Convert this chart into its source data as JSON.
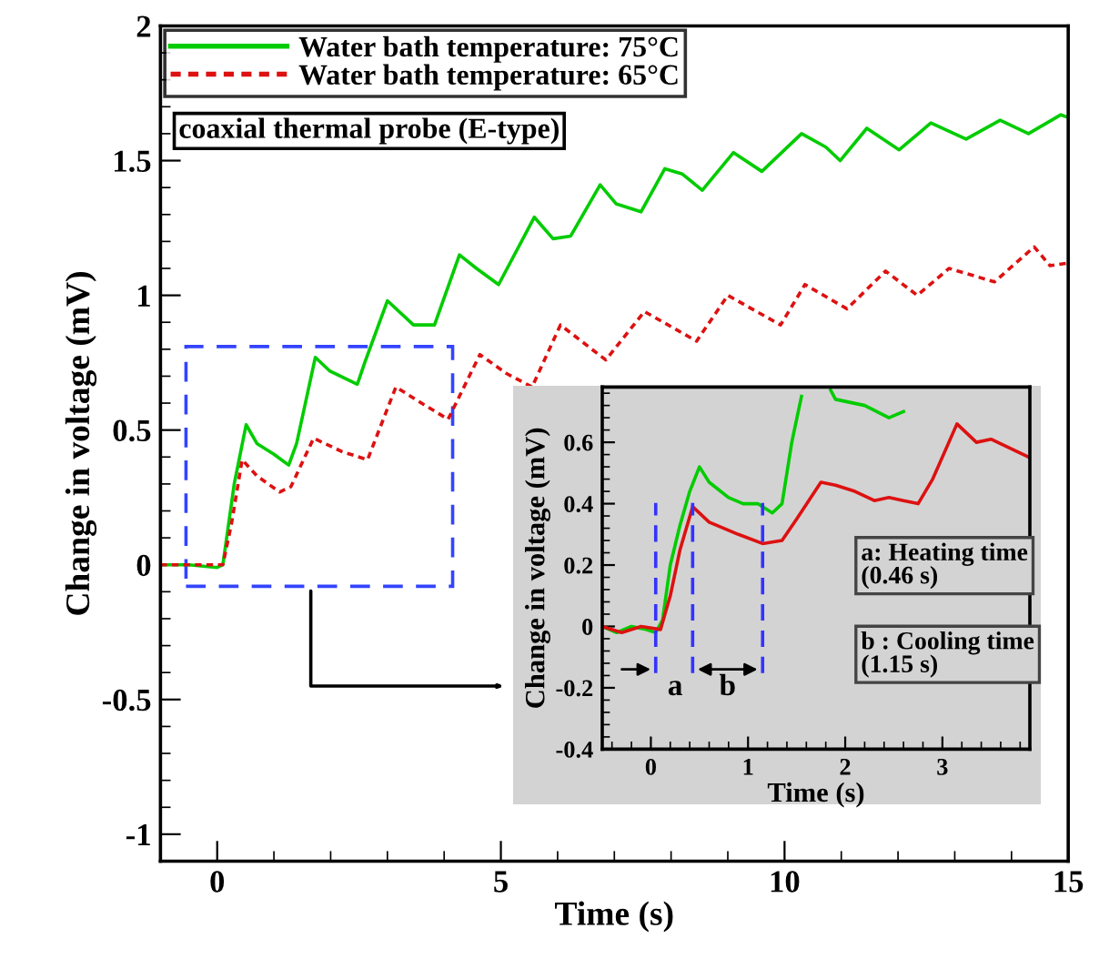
{
  "chart_data": [
    {
      "type": "line",
      "xlabel": "Time (s)",
      "ylabel": "Change in voltage (mV)",
      "xlim": [
        -1,
        15
      ],
      "xticks": [
        0,
        5,
        10,
        15
      ],
      "ylim": [
        -1.1,
        2
      ],
      "yticks": [
        -1,
        -0.5,
        0,
        0.5,
        1,
        1.5,
        2
      ],
      "grid": false,
      "legend": "top left",
      "marker": "none",
      "annotations": [
        "coaxial thermal probe (E-type)"
      ],
      "series": [
        {
          "name": "Water bath temperature: 75°C",
          "color": "#00cc00",
          "line_style": "solid",
          "x": [
            -1,
            -0.5,
            0,
            0.1,
            0.3,
            0.51,
            0.7,
            1.0,
            1.26,
            1.4,
            1.73,
            1.98,
            2.47,
            2.6,
            3.0,
            3.46,
            3.83,
            4.27,
            4.57,
            4.96,
            5.59,
            5.92,
            6.23,
            6.75,
            7.03,
            7.47,
            7.89,
            8.2,
            8.55,
            9.1,
            9.6,
            10.3,
            10.73,
            10.98,
            11.45,
            12.02,
            12.58,
            13.2,
            13.8,
            14.3,
            14.87,
            15
          ],
          "values": [
            0,
            0,
            -0.01,
            0,
            0.3,
            0.52,
            0.45,
            0.41,
            0.37,
            0.45,
            0.77,
            0.72,
            0.67,
            0.75,
            0.98,
            0.89,
            0.89,
            1.15,
            1.1,
            1.04,
            1.29,
            1.21,
            1.22,
            1.41,
            1.34,
            1.31,
            1.47,
            1.45,
            1.39,
            1.53,
            1.46,
            1.6,
            1.55,
            1.5,
            1.62,
            1.54,
            1.64,
            1.58,
            1.65,
            1.6,
            1.67,
            1.66
          ]
        },
        {
          "name": "Water bath temperature: 65°C",
          "color": "#dd1111",
          "line_style": "dotted",
          "x": [
            -1,
            -0.5,
            0,
            0.1,
            0.25,
            0.44,
            0.7,
            1.1,
            1.3,
            1.7,
            2.2,
            2.65,
            3.15,
            3.6,
            4.07,
            4.63,
            5.1,
            5.55,
            6.05,
            6.85,
            7.53,
            8.45,
            9.0,
            9.93,
            10.36,
            11.1,
            11.78,
            12.34,
            12.9,
            13.7,
            14.4,
            14.68,
            15
          ],
          "values": [
            0,
            0,
            0,
            0,
            0.15,
            0.39,
            0.33,
            0.27,
            0.29,
            0.47,
            0.42,
            0.39,
            0.66,
            0.6,
            0.54,
            0.78,
            0.71,
            0.66,
            0.89,
            0.76,
            0.94,
            0.83,
            1.0,
            0.89,
            1.04,
            0.95,
            1.09,
            1.0,
            1.1,
            1.05,
            1.18,
            1.11,
            1.12
          ]
        }
      ]
    },
    {
      "type": "line",
      "xlabel": "Time (s)",
      "ylabel": "Change in voltage (mV)",
      "xlim": [
        -0.5,
        3.9
      ],
      "xticks": [
        0,
        1,
        2,
        3
      ],
      "ylim": [
        -0.4,
        0.78
      ],
      "yticks": [
        -0.4,
        -0.2,
        0,
        0.2,
        0.4,
        0.6
      ],
      "grid": false,
      "legend": false,
      "marker": "none",
      "annotations": [
        "a",
        "b",
        "a: Heating time\n(0.46 s)",
        "b : Cooling time\n(1.15 s)"
      ],
      "ref_lines": [
        {
          "axis": "x",
          "value": 0.05,
          "color": "#3333ff",
          "line_style": "dashed"
        },
        {
          "axis": "x",
          "value": 0.43,
          "color": "#3333ff",
          "line_style": "dashed"
        },
        {
          "axis": "x",
          "value": 1.15,
          "color": "#3333ff",
          "line_style": "dashed"
        }
      ],
      "series": [
        {
          "color": "#00cc00",
          "line_style": "solid",
          "x": [
            -0.5,
            -0.35,
            -0.2,
            -0.05,
            0.05,
            0.12,
            0.2,
            0.3,
            0.4,
            0.5,
            0.6,
            0.8,
            0.95,
            1.1,
            1.25,
            1.35,
            1.45,
            1.55,
            1.75,
            1.85,
            1.9,
            2.2,
            2.45,
            2.6
          ],
          "values": [
            0,
            -0.02,
            0.0,
            -0.01,
            -0.02,
            0.02,
            0.2,
            0.33,
            0.44,
            0.52,
            0.47,
            0.42,
            0.4,
            0.4,
            0.37,
            0.4,
            0.6,
            0.75,
            null,
            0.77,
            0.74,
            0.72,
            0.68,
            0.7
          ]
        },
        {
          "color": "#dd1111",
          "line_style": "solid",
          "x": [
            -0.5,
            -0.3,
            -0.1,
            0.1,
            0.2,
            0.3,
            0.43,
            0.6,
            0.9,
            1.15,
            1.35,
            1.5,
            1.75,
            1.9,
            2.1,
            2.3,
            2.45,
            2.6,
            2.75,
            2.9,
            3.15,
            3.35,
            3.5,
            3.9
          ],
          "values": [
            0,
            -0.02,
            0.0,
            -0.01,
            0.1,
            0.25,
            0.39,
            0.34,
            0.3,
            0.27,
            0.28,
            0.35,
            0.47,
            0.46,
            0.44,
            0.41,
            0.42,
            0.41,
            0.4,
            0.48,
            0.66,
            0.6,
            0.61,
            0.55
          ]
        }
      ]
    }
  ]
}
